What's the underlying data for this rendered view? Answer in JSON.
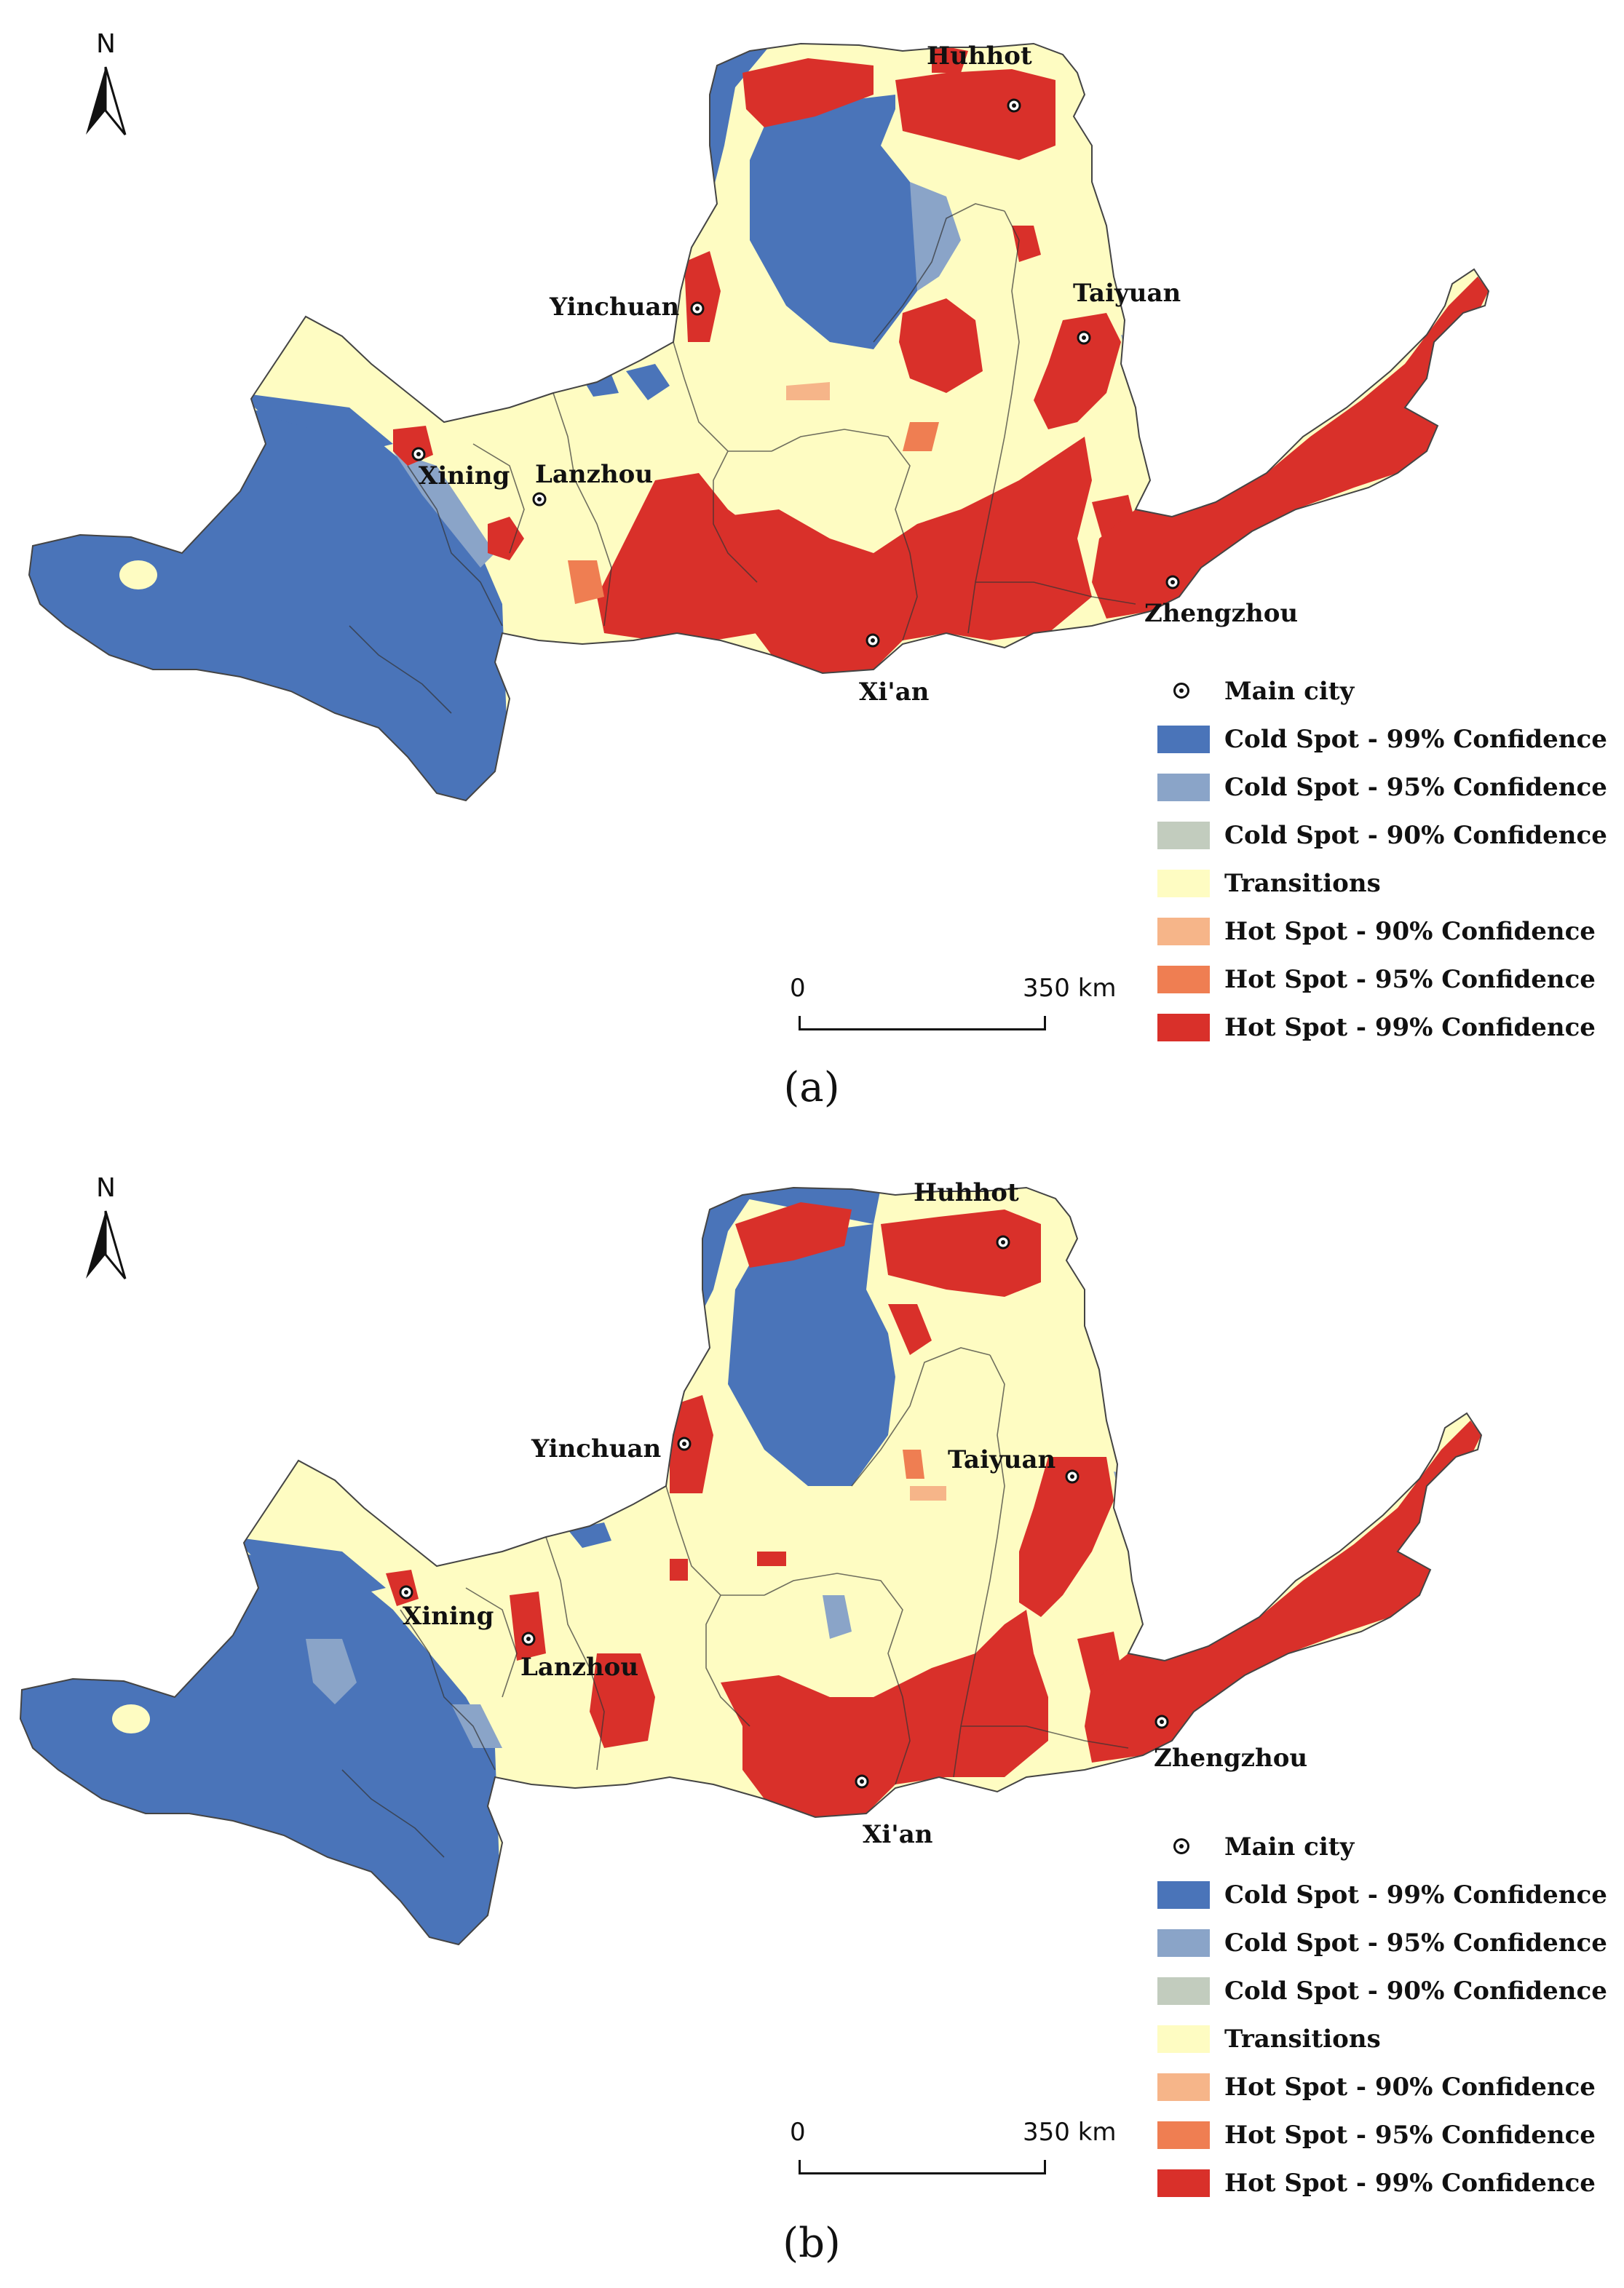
{
  "north_arrow": {
    "label": "N"
  },
  "legend": {
    "colors": {
      "main_city": "#111111",
      "cold_99": "#4a74b9",
      "cold_95": "#8aa4c8",
      "cold_90": "#c2ccbe",
      "transitions": "#fefcc2",
      "hot_90": "#f6b589",
      "hot_95": "#ef7e52",
      "hot_99": "#d9302a"
    },
    "items": [
      {
        "key": "main_city",
        "label": "Main city"
      },
      {
        "key": "cold_99",
        "label": "Cold Spot - 99% Confidence"
      },
      {
        "key": "cold_95",
        "label": "Cold Spot - 95% Confidence"
      },
      {
        "key": "cold_90",
        "label": "Cold Spot - 90% Confidence"
      },
      {
        "key": "transitions",
        "label": "Transitions"
      },
      {
        "key": "hot_90",
        "label": "Hot Spot - 90% Confidence"
      },
      {
        "key": "hot_95",
        "label": "Hot Spot - 95% Confidence"
      },
      {
        "key": "hot_99",
        "label": "Hot Spot - 99% Confidence"
      }
    ]
  },
  "scale_bar": {
    "start": "0",
    "end": "350 km"
  },
  "panels": [
    {
      "label": "(a)",
      "cities": {
        "huhhot": "Huhhot",
        "yinchuan": "Yinchuan",
        "taiyuan": "Taiyuan",
        "xining": "Xining",
        "lanzhou": "Lanzhou",
        "zhengzhou": "Zhengzhou",
        "xian": "Xi'an"
      }
    },
    {
      "label": "(b)",
      "cities": {
        "huhhot": "Huhhot",
        "yinchuan": "Yinchuan",
        "taiyuan": "Taiyuan",
        "xining": "Xining",
        "lanzhou": "Lanzhou",
        "zhengzhou": "Zhengzhou",
        "xian": "Xi'an"
      }
    }
  ]
}
